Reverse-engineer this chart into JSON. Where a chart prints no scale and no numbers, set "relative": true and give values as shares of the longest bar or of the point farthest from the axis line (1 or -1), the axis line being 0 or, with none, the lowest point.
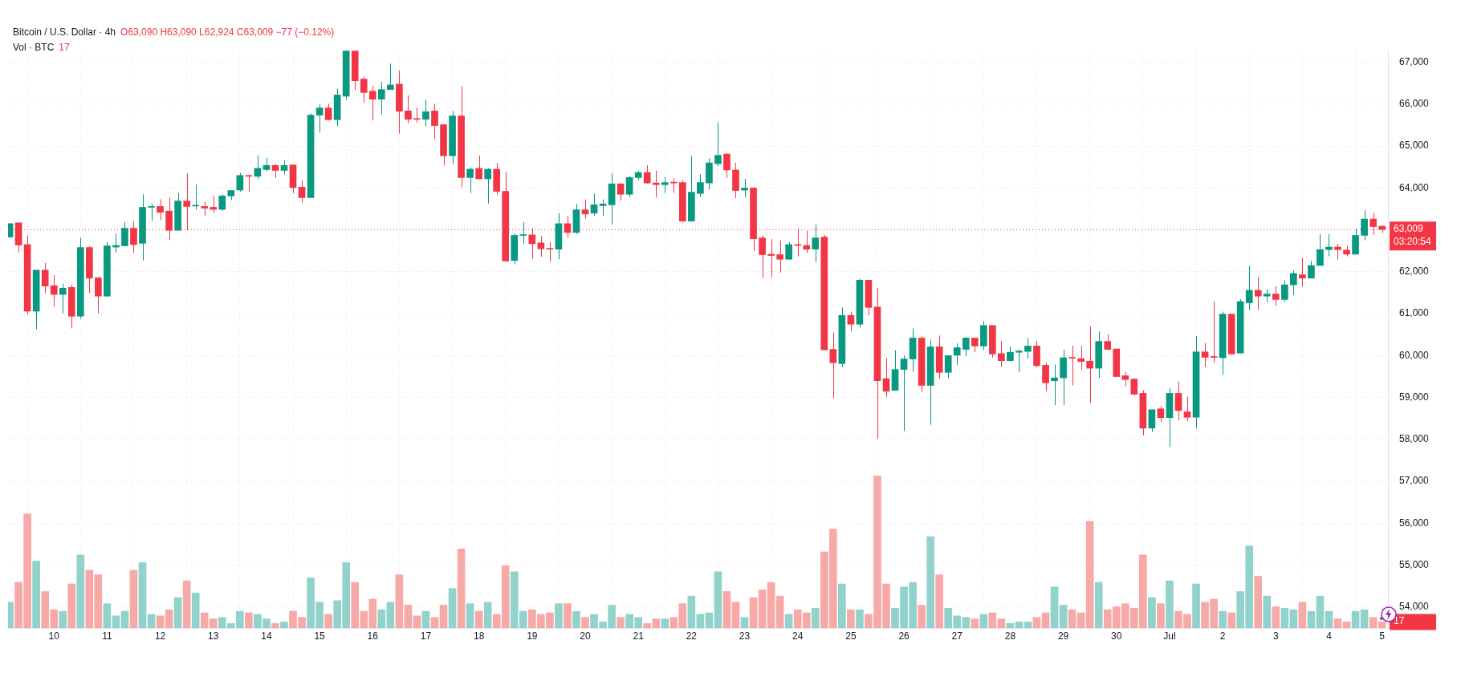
{
  "chart_data": [
    {
      "type": "candlestick",
      "title": "Bitcoin / U.S. Dollar · 4h",
      "subtitle": "O63,090 H63,090 L62,924 C63,009 −77 (−0.12%)",
      "annotations": [
        "03:20:54"
      ],
      "grid": true,
      "x": [
        "--06-09T04:00",
        "--06-09T08:00",
        "--06-09T12:00",
        "--06-09T16:00",
        "--06-09T20:00",
        "--06-10T00:00",
        "--06-10T04:00",
        "--06-10T08:00",
        "--06-10T12:00",
        "--06-10T16:00",
        "--06-10T20:00",
        "--06-11T00:00",
        "--06-11T04:00",
        "--06-11T08:00",
        "--06-11T12:00",
        "--06-11T16:00",
        "--06-11T20:00",
        "--06-12T00:00",
        "--06-12T04:00",
        "--06-12T08:00",
        "--06-12T12:00",
        "--06-12T16:00",
        "--06-12T20:00",
        "--06-13T00:00",
        "--06-13T04:00",
        "--06-13T08:00",
        "--06-13T12:00",
        "--06-13T16:00",
        "--06-13T20:00",
        "--06-14T00:00",
        "--06-14T04:00",
        "--06-14T08:00",
        "--06-14T12:00",
        "--06-14T16:00",
        "--06-14T20:00",
        "--06-15T00:00",
        "--06-15T04:00",
        "--06-15T08:00",
        "--06-15T12:00",
        "--06-15T16:00",
        "--06-15T20:00",
        "--06-16T00:00",
        "--06-16T04:00",
        "--06-16T08:00",
        "--06-16T12:00",
        "--06-16T16:00",
        "--06-16T20:00",
        "--06-17T00:00",
        "--06-17T04:00",
        "--06-17T08:00",
        "--06-17T12:00",
        "--06-17T16:00",
        "--06-17T20:00",
        "--06-18T00:00",
        "--06-18T04:00",
        "--06-18T08:00",
        "--06-18T12:00",
        "--06-18T16:00",
        "--06-18T20:00",
        "--06-19T00:00",
        "--06-19T04:00",
        "--06-19T08:00",
        "--06-19T12:00",
        "--06-19T16:00",
        "--06-19T20:00",
        "--06-20T00:00",
        "--06-20T04:00",
        "--06-20T08:00",
        "--06-20T12:00",
        "--06-20T16:00",
        "--06-20T20:00",
        "--06-21T00:00",
        "--06-21T04:00",
        "--06-21T08:00",
        "--06-21T12:00",
        "--06-21T16:00",
        "--06-21T20:00",
        "--06-22T00:00",
        "--06-22T04:00",
        "--06-22T08:00",
        "--06-22T12:00",
        "--06-22T16:00",
        "--06-22T20:00",
        "--06-23T00:00",
        "--06-23T04:00",
        "--06-23T08:00",
        "--06-23T12:00",
        "--06-23T16:00",
        "--06-23T20:00",
        "--06-24T00:00",
        "--06-24T04:00",
        "--06-24T08:00",
        "--06-24T12:00",
        "--06-24T16:00",
        "--06-24T20:00",
        "--06-25T00:00",
        "--06-25T04:00",
        "--06-25T08:00",
        "--06-25T12:00",
        "--06-25T16:00",
        "--06-25T20:00",
        "--06-26T00:00",
        "--06-26T04:00",
        "--06-26T08:00",
        "--06-26T12:00",
        "--06-26T16:00",
        "--06-26T20:00",
        "--06-27T00:00",
        "--06-27T04:00",
        "--06-27T08:00",
        "--06-27T12:00",
        "--06-27T16:00",
        "--06-27T20:00",
        "--06-28T00:00",
        "--06-28T04:00",
        "--06-28T08:00",
        "--06-28T12:00",
        "--06-28T16:00",
        "--06-28T20:00",
        "--06-29T00:00",
        "--06-29T04:00",
        "--06-29T08:00",
        "--06-29T12:00",
        "--06-29T16:00",
        "--06-29T20:00",
        "--06-30T00:00",
        "--06-30T04:00",
        "--06-30T08:00",
        "--06-30T12:00",
        "--06-30T16:00",
        "--06-30T20:00",
        "--07-01T00:00",
        "--07-01T04:00",
        "--07-01T08:00",
        "--07-01T12:00",
        "--07-01T16:00",
        "--07-01T20:00",
        "--07-02T00:00",
        "--07-02T04:00",
        "--07-02T08:00",
        "--07-02T12:00",
        "--07-02T16:00",
        "--07-02T20:00",
        "--07-03T00:00",
        "--07-03T04:00",
        "--07-03T08:00",
        "--07-03T12:00",
        "--07-03T16:00",
        "--07-03T20:00",
        "--07-04T00:00",
        "--07-04T04:00",
        "--07-04T08:00",
        "--07-04T12:00",
        "--07-04T16:00",
        "--07-04T20:00",
        "--07-05T00:00"
      ],
      "xlim": [
        "--06-09T03:15",
        "--07-05T02:40"
      ],
      "xticks": [
        {
          "value": "--06-10",
          "label": "10"
        },
        {
          "value": "--06-11",
          "label": "11"
        },
        {
          "value": "--06-12",
          "label": "12"
        },
        {
          "value": "--06-13",
          "label": "13"
        },
        {
          "value": "--06-14",
          "label": "14"
        },
        {
          "value": "--06-15",
          "label": "15"
        },
        {
          "value": "--06-16",
          "label": "16"
        },
        {
          "value": "--06-17",
          "label": "17"
        },
        {
          "value": "--06-18",
          "label": "18"
        },
        {
          "value": "--06-19",
          "label": "19"
        },
        {
          "value": "--06-20",
          "label": "20"
        },
        {
          "value": "--06-21",
          "label": "21"
        },
        {
          "value": "--06-22",
          "label": "22"
        },
        {
          "value": "--06-23",
          "label": "23"
        },
        {
          "value": "--06-24",
          "label": "24"
        },
        {
          "value": "--06-25",
          "label": "25"
        },
        {
          "value": "--06-26",
          "label": "26"
        },
        {
          "value": "--06-27",
          "label": "27"
        },
        {
          "value": "--06-28",
          "label": "28"
        },
        {
          "value": "--06-29",
          "label": "29"
        },
        {
          "value": "--06-30",
          "label": "30"
        },
        {
          "value": "--07-01",
          "label": "Jul"
        },
        {
          "value": "--07-02",
          "label": "2"
        },
        {
          "value": "--07-03",
          "label": "3"
        },
        {
          "value": "--07-04",
          "label": "4"
        },
        {
          "value": "--07-05",
          "label": "5"
        }
      ],
      "ylim": [
        53500,
        67300
      ],
      "yticks": [
        {
          "value": 54000,
          "label": "54,000"
        },
        {
          "value": 55000,
          "label": "55,000"
        },
        {
          "value": 56000,
          "label": "56,000"
        },
        {
          "value": 57000,
          "label": "57,000"
        },
        {
          "value": 58000,
          "label": "58,000"
        },
        {
          "value": 59000,
          "label": "59,000"
        },
        {
          "value": 60000,
          "label": "60,000"
        },
        {
          "value": 61000,
          "label": "61,000"
        },
        {
          "value": 62000,
          "label": "62,000"
        },
        {
          "value": 63000,
          "label": null
        },
        {
          "value": 64000,
          "label": "64,000"
        },
        {
          "value": 65000,
          "label": "65,000"
        },
        {
          "value": 66000,
          "label": "66,000"
        },
        {
          "value": 67000,
          "label": "67,000"
        }
      ],
      "ref_lines": [
        {
          "axis": "y",
          "value": 63009,
          "label": "63,009",
          "color": "#f23645",
          "line_style": "dotted"
        }
      ],
      "ohlc": [
        [
          62830,
          63150,
          62830,
          63150
        ],
        [
          63170,
          63170,
          62460,
          62640
        ],
        [
          62650,
          62870,
          60990,
          61060
        ],
        [
          61060,
          62040,
          60630,
          62040
        ],
        [
          62040,
          62210,
          61490,
          61660
        ],
        [
          61670,
          61920,
          61170,
          61460
        ],
        [
          61460,
          61720,
          61010,
          61610
        ],
        [
          61630,
          61690,
          60650,
          60940
        ],
        [
          60940,
          62810,
          60880,
          62580
        ],
        [
          62580,
          62610,
          61490,
          61850
        ],
        [
          61860,
          61860,
          61010,
          61420
        ],
        [
          61420,
          62710,
          61420,
          62620
        ],
        [
          62590,
          62920,
          62460,
          62630
        ],
        [
          62620,
          63190,
          62620,
          63040
        ],
        [
          63040,
          63190,
          62450,
          62650
        ],
        [
          62680,
          63850,
          62270,
          63540
        ],
        [
          63540,
          63630,
          63220,
          63560
        ],
        [
          63560,
          63730,
          63230,
          63420
        ],
        [
          63450,
          63770,
          62760,
          62990
        ],
        [
          62990,
          63880,
          62990,
          63690
        ],
        [
          63690,
          64350,
          62990,
          63560
        ],
        [
          63570,
          64080,
          63480,
          63580
        ],
        [
          63560,
          63670,
          63340,
          63520
        ],
        [
          63540,
          63810,
          63410,
          63490
        ],
        [
          63490,
          63850,
          63460,
          63810
        ],
        [
          63810,
          63940,
          63710,
          63940
        ],
        [
          63950,
          64360,
          63910,
          64300
        ],
        [
          64300,
          64320,
          63910,
          64280
        ],
        [
          64280,
          64780,
          64210,
          64470
        ],
        [
          64440,
          64720,
          64400,
          64540
        ],
        [
          64540,
          64580,
          64240,
          64420
        ],
        [
          64420,
          64660,
          64320,
          64540
        ],
        [
          64550,
          64560,
          63880,
          64010
        ],
        [
          64020,
          64190,
          63650,
          63770
        ],
        [
          63770,
          65780,
          63770,
          65740
        ],
        [
          65740,
          66000,
          65320,
          65910
        ],
        [
          65910,
          66010,
          65610,
          65630
        ],
        [
          65630,
          66370,
          65470,
          66220
        ],
        [
          66190,
          67270,
          66100,
          67270
        ],
        [
          67270,
          67270,
          66340,
          66560
        ],
        [
          66600,
          66660,
          66040,
          66280
        ],
        [
          66310,
          66440,
          65610,
          66120
        ],
        [
          66120,
          66540,
          65760,
          66350
        ],
        [
          66350,
          66970,
          66350,
          66460
        ],
        [
          66480,
          66800,
          65300,
          65830
        ],
        [
          65840,
          66210,
          65540,
          65640
        ],
        [
          65650,
          65920,
          65560,
          65640
        ],
        [
          65640,
          66110,
          65460,
          65820
        ],
        [
          65840,
          66010,
          65170,
          65490
        ],
        [
          65510,
          65530,
          64540,
          64770
        ],
        [
          64770,
          65840,
          64580,
          65720
        ],
        [
          65720,
          66430,
          64020,
          64250
        ],
        [
          64250,
          64490,
          63880,
          64450
        ],
        [
          64470,
          64780,
          64210,
          64220
        ],
        [
          64220,
          64470,
          63630,
          64450
        ],
        [
          64450,
          64600,
          63840,
          63920
        ],
        [
          63920,
          64380,
          62240,
          62260
        ],
        [
          62270,
          62920,
          62180,
          62870
        ],
        [
          62870,
          63190,
          62670,
          62880
        ],
        [
          62880,
          63040,
          62310,
          62670
        ],
        [
          62690,
          62850,
          62360,
          62550
        ],
        [
          62560,
          62710,
          62240,
          62540
        ],
        [
          62540,
          63400,
          62300,
          63150
        ],
        [
          63150,
          63330,
          62810,
          62940
        ],
        [
          62940,
          63620,
          62900,
          63480
        ],
        [
          63480,
          63730,
          63270,
          63380
        ],
        [
          63400,
          63870,
          63340,
          63600
        ],
        [
          63580,
          63730,
          63330,
          63620
        ],
        [
          63600,
          64350,
          63130,
          64100
        ],
        [
          64100,
          64120,
          63700,
          63850
        ],
        [
          63850,
          64290,
          63790,
          64250
        ],
        [
          64250,
          64410,
          64190,
          64370
        ],
        [
          64370,
          64540,
          64100,
          64120
        ],
        [
          64120,
          64410,
          63780,
          64080
        ],
        [
          64080,
          64270,
          63880,
          64130
        ],
        [
          64140,
          64230,
          63880,
          64120
        ],
        [
          64130,
          64190,
          63190,
          63210
        ],
        [
          63210,
          64770,
          63210,
          63900
        ],
        [
          63870,
          64330,
          63790,
          64130
        ],
        [
          64120,
          64710,
          63960,
          64600
        ],
        [
          64580,
          65570,
          64520,
          64780
        ],
        [
          64810,
          64830,
          64240,
          64430
        ],
        [
          64430,
          64600,
          63760,
          63940
        ],
        [
          63950,
          64220,
          63770,
          64000
        ],
        [
          64000,
          64020,
          62500,
          62790
        ],
        [
          62810,
          62870,
          61850,
          62410
        ],
        [
          62420,
          62780,
          61870,
          62390
        ],
        [
          62410,
          62750,
          61980,
          62300
        ],
        [
          62300,
          62710,
          62300,
          62650
        ],
        [
          62650,
          63040,
          62370,
          62630
        ],
        [
          62630,
          62980,
          62450,
          62540
        ],
        [
          62540,
          63130,
          62230,
          62810
        ],
        [
          62830,
          62880,
          60140,
          60140
        ],
        [
          60150,
          60550,
          58980,
          59830
        ],
        [
          59810,
          61150,
          59730,
          60960
        ],
        [
          60960,
          61050,
          60580,
          60750
        ],
        [
          60750,
          61840,
          60670,
          61800
        ],
        [
          61800,
          61800,
          60960,
          61150
        ],
        [
          61160,
          61620,
          58010,
          59400
        ],
        [
          59450,
          59940,
          59010,
          59150
        ],
        [
          59170,
          60130,
          59170,
          59670
        ],
        [
          59670,
          60000,
          58200,
          59920
        ],
        [
          59920,
          60650,
          59610,
          60420
        ],
        [
          60420,
          60460,
          59140,
          59290
        ],
        [
          59290,
          60380,
          58350,
          60210
        ],
        [
          60210,
          60480,
          59450,
          59600
        ],
        [
          59600,
          60000,
          59460,
          60000
        ],
        [
          60010,
          60290,
          59770,
          60190
        ],
        [
          60150,
          60440,
          59990,
          60420
        ],
        [
          60420,
          60420,
          60080,
          60230
        ],
        [
          60230,
          60820,
          60130,
          60720
        ],
        [
          60720,
          60720,
          59950,
          60040
        ],
        [
          60050,
          60350,
          59730,
          59880
        ],
        [
          59880,
          60220,
          59860,
          60080
        ],
        [
          60080,
          60150,
          59600,
          60110
        ],
        [
          60100,
          60420,
          59930,
          60230
        ],
        [
          60230,
          60350,
          59720,
          59760
        ],
        [
          59770,
          59830,
          59160,
          59350
        ],
        [
          59400,
          59790,
          58820,
          59470
        ],
        [
          59470,
          60140,
          58820,
          59950
        ],
        [
          59960,
          60240,
          59290,
          59940
        ],
        [
          59930,
          60230,
          59660,
          59860
        ],
        [
          59870,
          60700,
          58870,
          59700
        ],
        [
          59700,
          60580,
          59470,
          60340
        ],
        [
          60340,
          60510,
          60120,
          60150
        ],
        [
          60160,
          60160,
          59500,
          59500
        ],
        [
          59520,
          59610,
          59270,
          59430
        ],
        [
          59440,
          59460,
          59050,
          59080
        ],
        [
          59100,
          59170,
          58100,
          58270
        ],
        [
          58270,
          58710,
          58180,
          58710
        ],
        [
          58730,
          58790,
          58420,
          58520
        ],
        [
          58520,
          59230,
          57820,
          59100
        ],
        [
          59100,
          59380,
          58460,
          58690
        ],
        [
          58660,
          59020,
          58440,
          58530
        ],
        [
          58530,
          60470,
          58270,
          60090
        ],
        [
          60090,
          60300,
          59730,
          59960
        ],
        [
          59980,
          61290,
          59830,
          59960
        ],
        [
          59950,
          61050,
          59540,
          60990
        ],
        [
          60990,
          60990,
          60040,
          60040
        ],
        [
          60060,
          61350,
          60060,
          61290
        ],
        [
          61260,
          62140,
          61090,
          61560
        ],
        [
          61560,
          61880,
          61090,
          61420
        ],
        [
          61420,
          61590,
          61280,
          61470
        ],
        [
          61470,
          61660,
          61190,
          61340
        ],
        [
          61340,
          61790,
          61280,
          61690
        ],
        [
          61690,
          62040,
          61450,
          61960
        ],
        [
          61930,
          62340,
          61650,
          61850
        ],
        [
          61850,
          62260,
          61850,
          62150
        ],
        [
          62150,
          62900,
          62150,
          62530
        ],
        [
          62530,
          62900,
          62370,
          62590
        ],
        [
          62590,
          62670,
          62290,
          62530
        ],
        [
          62520,
          62620,
          62370,
          62420
        ],
        [
          62420,
          63030,
          62420,
          62870
        ],
        [
          62870,
          63470,
          62750,
          63260
        ],
        [
          63260,
          63410,
          62880,
          63080
        ],
        [
          63090,
          63090,
          62924,
          63009
        ]
      ],
      "colors": [
        "#089981",
        "#f23645",
        "#f23645",
        "#089981",
        "#f23645",
        "#f23645",
        "#089981",
        "#f23645",
        "#089981",
        "#f23645",
        "#f23645",
        "#089981",
        "#089981",
        "#089981",
        "#f23645",
        "#089981",
        "#089981",
        "#f23645",
        "#f23645",
        "#089981",
        "#f23645",
        "#089981",
        "#f23645",
        "#f23645",
        "#089981",
        "#089981",
        "#089981",
        "#f23645",
        "#089981",
        "#089981",
        "#f23645",
        "#089981",
        "#f23645",
        "#f23645",
        "#089981",
        "#089981",
        "#f23645",
        "#089981",
        "#089981",
        "#f23645",
        "#f23645",
        "#f23645",
        "#089981",
        "#089981",
        "#f23645",
        "#f23645",
        "#f23645",
        "#089981",
        "#f23645",
        "#f23645",
        "#089981",
        "#f23645",
        "#089981",
        "#f23645",
        "#089981",
        "#f23645",
        "#f23645",
        "#089981",
        "#089981",
        "#f23645",
        "#f23645",
        "#f23645",
        "#089981",
        "#f23645",
        "#089981",
        "#f23645",
        "#089981",
        "#089981",
        "#089981",
        "#f23645",
        "#089981",
        "#089981",
        "#f23645",
        "#f23645",
        "#089981",
        "#f23645",
        "#f23645",
        "#089981",
        "#089981",
        "#089981",
        "#089981",
        "#f23645",
        "#f23645",
        "#089981",
        "#f23645",
        "#f23645",
        "#f23645",
        "#f23645",
        "#089981",
        "#f23645",
        "#f23645",
        "#089981",
        "#f23645",
        "#f23645",
        "#089981",
        "#f23645",
        "#089981",
        "#f23645",
        "#f23645",
        "#f23645",
        "#089981",
        "#089981",
        "#089981",
        "#f23645",
        "#089981",
        "#f23645",
        "#089981",
        "#089981",
        "#089981",
        "#f23645",
        "#089981",
        "#f23645",
        "#f23645",
        "#089981",
        "#089981",
        "#089981",
        "#f23645",
        "#f23645",
        "#089981",
        "#089981",
        "#f23645",
        "#f23645",
        "#f23645",
        "#089981",
        "#f23645",
        "#f23645",
        "#f23645",
        "#f23645",
        "#f23645",
        "#089981",
        "#f23645",
        "#089981",
        "#f23645",
        "#f23645",
        "#089981",
        "#f23645",
        "#f23645",
        "#089981",
        "#f23645",
        "#089981",
        "#089981",
        "#f23645",
        "#089981",
        "#f23645",
        "#089981",
        "#089981",
        "#f23645",
        "#089981",
        "#089981",
        "#089981",
        "#f23645",
        "#f23645",
        "#089981",
        "#089981",
        "#f23645",
        "#f23645"
      ]
    },
    {
      "type": "bar",
      "relative": true,
      "legend": "top left",
      "annotations": [
        "17"
      ],
      "xlim": [
        "--06-09T03:15",
        "--07-05T02:40"
      ],
      "x": [
        "--06-09T04:00",
        "--06-09T08:00",
        "--06-09T12:00",
        "--06-09T16:00",
        "--06-09T20:00",
        "--06-10T00:00",
        "--06-10T04:00",
        "--06-10T08:00",
        "--06-10T12:00",
        "--06-10T16:00",
        "--06-10T20:00",
        "--06-11T00:00",
        "--06-11T04:00",
        "--06-11T08:00",
        "--06-11T12:00",
        "--06-11T16:00",
        "--06-11T20:00",
        "--06-12T00:00",
        "--06-12T04:00",
        "--06-12T08:00",
        "--06-12T12:00",
        "--06-12T16:00",
        "--06-12T20:00",
        "--06-13T00:00",
        "--06-13T04:00",
        "--06-13T08:00",
        "--06-13T12:00",
        "--06-13T16:00",
        "--06-13T20:00",
        "--06-14T00:00",
        "--06-14T04:00",
        "--06-14T08:00",
        "--06-14T12:00",
        "--06-14T16:00",
        "--06-14T20:00",
        "--06-15T00:00",
        "--06-15T04:00",
        "--06-15T08:00",
        "--06-15T12:00",
        "--06-15T16:00",
        "--06-15T20:00",
        "--06-16T00:00",
        "--06-16T04:00",
        "--06-16T08:00",
        "--06-16T12:00",
        "--06-16T16:00",
        "--06-16T20:00",
        "--06-17T00:00",
        "--06-17T04:00",
        "--06-17T08:00",
        "--06-17T12:00",
        "--06-17T16:00",
        "--06-17T20:00",
        "--06-18T00:00",
        "--06-18T04:00",
        "--06-18T08:00",
        "--06-18T12:00",
        "--06-18T16:00",
        "--06-18T20:00",
        "--06-19T00:00",
        "--06-19T04:00",
        "--06-19T08:00",
        "--06-19T12:00",
        "--06-19T16:00",
        "--06-19T20:00",
        "--06-20T00:00",
        "--06-20T04:00",
        "--06-20T08:00",
        "--06-20T12:00",
        "--06-20T16:00",
        "--06-20T20:00",
        "--06-21T00:00",
        "--06-21T04:00",
        "--06-21T08:00",
        "--06-21T12:00",
        "--06-21T16:00",
        "--06-21T20:00",
        "--06-22T00:00",
        "--06-22T04:00",
        "--06-22T08:00",
        "--06-22T12:00",
        "--06-22T16:00",
        "--06-22T20:00",
        "--06-23T00:00",
        "--06-23T04:00",
        "--06-23T08:00",
        "--06-23T12:00",
        "--06-23T16:00",
        "--06-23T20:00",
        "--06-24T00:00",
        "--06-24T04:00",
        "--06-24T08:00",
        "--06-24T12:00",
        "--06-24T16:00",
        "--06-24T20:00",
        "--06-25T00:00",
        "--06-25T04:00",
        "--06-25T08:00",
        "--06-25T12:00",
        "--06-25T16:00",
        "--06-25T20:00",
        "--06-26T00:00",
        "--06-26T04:00",
        "--06-26T08:00",
        "--06-26T12:00",
        "--06-26T16:00",
        "--06-26T20:00",
        "--06-27T00:00",
        "--06-27T04:00",
        "--06-27T08:00",
        "--06-27T12:00",
        "--06-27T16:00",
        "--06-27T20:00",
        "--06-28T00:00",
        "--06-28T04:00",
        "--06-28T08:00",
        "--06-28T12:00",
        "--06-28T16:00",
        "--06-28T20:00",
        "--06-29T00:00",
        "--06-29T04:00",
        "--06-29T08:00",
        "--06-29T12:00",
        "--06-29T16:00",
        "--06-29T20:00",
        "--06-30T00:00",
        "--06-30T04:00",
        "--06-30T08:00",
        "--06-30T12:00",
        "--06-30T16:00",
        "--06-30T20:00",
        "--07-01T00:00",
        "--07-01T04:00",
        "--07-01T08:00",
        "--07-01T12:00",
        "--07-01T16:00",
        "--07-01T20:00",
        "--07-02T00:00",
        "--07-02T04:00",
        "--07-02T08:00",
        "--07-02T12:00",
        "--07-02T16:00",
        "--07-02T20:00",
        "--07-03T00:00",
        "--07-03T04:00",
        "--07-03T08:00",
        "--07-03T12:00",
        "--07-03T16:00",
        "--07-03T20:00",
        "--07-04T00:00",
        "--07-04T04:00",
        "--07-04T08:00",
        "--07-04T12:00",
        "--07-04T16:00",
        "--07-04T20:00",
        "--07-05T00:00"
      ],
      "series": [
        {
          "name": "Vol · BTC",
          "values": [
            0.17,
            0.3,
            0.75,
            0.44,
            0.24,
            0.12,
            0.11,
            0.29,
            0.48,
            0.38,
            0.35,
            0.16,
            0.08,
            0.11,
            0.38,
            0.43,
            0.09,
            0.08,
            0.12,
            0.2,
            0.31,
            0.23,
            0.1,
            0.06,
            0.07,
            0.03,
            0.11,
            0.1,
            0.09,
            0.06,
            0.03,
            0.04,
            0.11,
            0.07,
            0.33,
            0.17,
            0.09,
            0.18,
            0.43,
            0.3,
            0.11,
            0.19,
            0.12,
            0.17,
            0.35,
            0.15,
            0.08,
            0.11,
            0.07,
            0.15,
            0.26,
            0.52,
            0.16,
            0.11,
            0.17,
            0.09,
            0.41,
            0.37,
            0.11,
            0.12,
            0.09,
            0.1,
            0.16,
            0.16,
            0.11,
            0.07,
            0.09,
            0.04,
            0.15,
            0.07,
            0.09,
            0.07,
            0.03,
            0.06,
            0.06,
            0.07,
            0.16,
            0.21,
            0.09,
            0.1,
            0.37,
            0.24,
            0.17,
            0.07,
            0.2,
            0.25,
            0.3,
            0.21,
            0.09,
            0.12,
            0.1,
            0.13,
            0.5,
            0.65,
            0.29,
            0.12,
            0.12,
            0.09,
            1,
            0.29,
            0.13,
            0.27,
            0.3,
            0.15,
            0.6,
            0.35,
            0.13,
            0.08,
            0.07,
            0.06,
            0.09,
            0.1,
            0.06,
            0.03,
            0.04,
            0.04,
            0.07,
            0.1,
            0.27,
            0.15,
            0.12,
            0.1,
            0.7,
            0.3,
            0.12,
            0.14,
            0.16,
            0.13,
            0.48,
            0.2,
            0.16,
            0.31,
            0.11,
            0.09,
            0.29,
            0.17,
            0.19,
            0.11,
            0.1,
            0.24,
            0.54,
            0.34,
            0.21,
            0.14,
            0.13,
            0.12,
            0.17,
            0.11,
            0.21,
            0.11,
            0.06,
            0.04,
            0.11,
            0.12,
            0.07,
            0.04
          ],
          "colors": [
            "#92d2cc",
            "#f7a9a7",
            "#f7a9a7",
            "#92d2cc",
            "#f7a9a7",
            "#f7a9a7",
            "#92d2cc",
            "#f7a9a7",
            "#92d2cc",
            "#f7a9a7",
            "#f7a9a7",
            "#92d2cc",
            "#92d2cc",
            "#92d2cc",
            "#f7a9a7",
            "#92d2cc",
            "#92d2cc",
            "#f7a9a7",
            "#f7a9a7",
            "#92d2cc",
            "#f7a9a7",
            "#92d2cc",
            "#f7a9a7",
            "#f7a9a7",
            "#92d2cc",
            "#92d2cc",
            "#92d2cc",
            "#f7a9a7",
            "#92d2cc",
            "#92d2cc",
            "#f7a9a7",
            "#92d2cc",
            "#f7a9a7",
            "#f7a9a7",
            "#92d2cc",
            "#92d2cc",
            "#f7a9a7",
            "#92d2cc",
            "#92d2cc",
            "#f7a9a7",
            "#f7a9a7",
            "#f7a9a7",
            "#92d2cc",
            "#92d2cc",
            "#f7a9a7",
            "#f7a9a7",
            "#f7a9a7",
            "#92d2cc",
            "#f7a9a7",
            "#f7a9a7",
            "#92d2cc",
            "#f7a9a7",
            "#92d2cc",
            "#f7a9a7",
            "#92d2cc",
            "#f7a9a7",
            "#f7a9a7",
            "#92d2cc",
            "#92d2cc",
            "#f7a9a7",
            "#f7a9a7",
            "#f7a9a7",
            "#92d2cc",
            "#f7a9a7",
            "#92d2cc",
            "#f7a9a7",
            "#92d2cc",
            "#92d2cc",
            "#92d2cc",
            "#f7a9a7",
            "#92d2cc",
            "#92d2cc",
            "#f7a9a7",
            "#f7a9a7",
            "#92d2cc",
            "#f7a9a7",
            "#f7a9a7",
            "#92d2cc",
            "#92d2cc",
            "#92d2cc",
            "#92d2cc",
            "#f7a9a7",
            "#f7a9a7",
            "#92d2cc",
            "#f7a9a7",
            "#f7a9a7",
            "#f7a9a7",
            "#f7a9a7",
            "#92d2cc",
            "#f7a9a7",
            "#f7a9a7",
            "#92d2cc",
            "#f7a9a7",
            "#f7a9a7",
            "#92d2cc",
            "#f7a9a7",
            "#92d2cc",
            "#f7a9a7",
            "#f7a9a7",
            "#f7a9a7",
            "#92d2cc",
            "#92d2cc",
            "#92d2cc",
            "#f7a9a7",
            "#92d2cc",
            "#f7a9a7",
            "#92d2cc",
            "#92d2cc",
            "#92d2cc",
            "#f7a9a7",
            "#92d2cc",
            "#f7a9a7",
            "#f7a9a7",
            "#92d2cc",
            "#92d2cc",
            "#92d2cc",
            "#f7a9a7",
            "#f7a9a7",
            "#92d2cc",
            "#92d2cc",
            "#f7a9a7",
            "#f7a9a7",
            "#f7a9a7",
            "#92d2cc",
            "#f7a9a7",
            "#f7a9a7",
            "#f7a9a7",
            "#f7a9a7",
            "#f7a9a7",
            "#92d2cc",
            "#f7a9a7",
            "#92d2cc",
            "#f7a9a7",
            "#f7a9a7",
            "#92d2cc",
            "#f7a9a7",
            "#f7a9a7",
            "#92d2cc",
            "#f7a9a7",
            "#92d2cc",
            "#92d2cc",
            "#f7a9a7",
            "#92d2cc",
            "#f7a9a7",
            "#92d2cc",
            "#92d2cc",
            "#f7a9a7",
            "#92d2cc",
            "#92d2cc",
            "#92d2cc",
            "#f7a9a7",
            "#f7a9a7",
            "#92d2cc",
            "#92d2cc",
            "#f7a9a7",
            "#f7a9a7"
          ]
        }
      ]
    }
  ]
}
